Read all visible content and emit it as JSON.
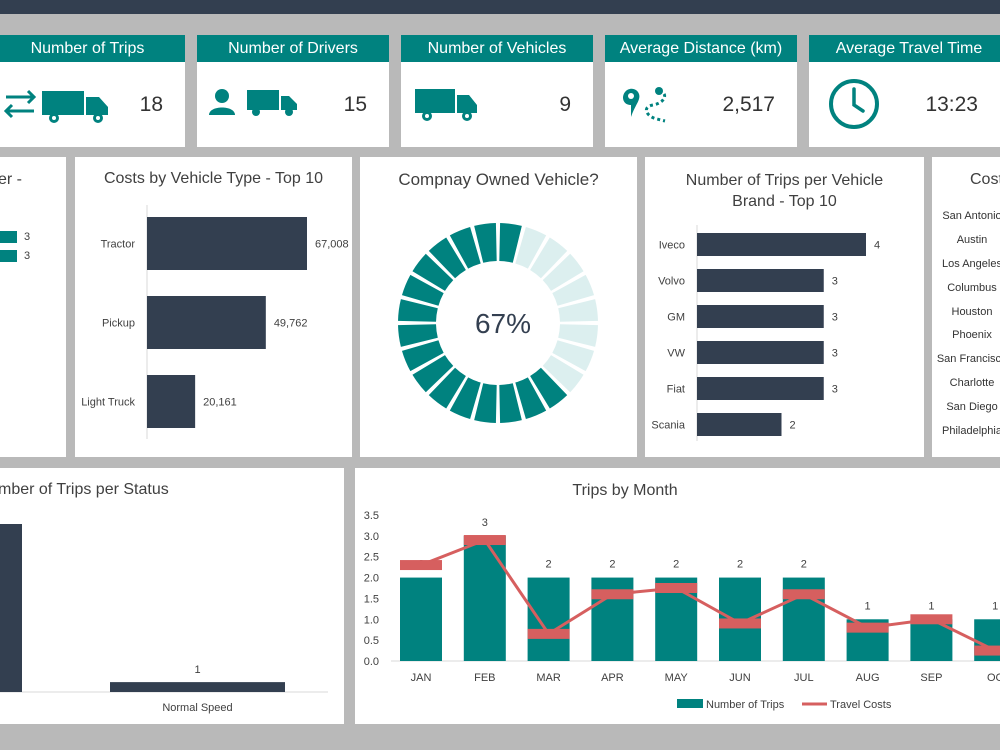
{
  "kpis": [
    {
      "label": "Number of Trips",
      "value": "18"
    },
    {
      "label": "Number of Drivers",
      "value": "15"
    },
    {
      "label": "Number of Vehicles",
      "value": "9"
    },
    {
      "label": "Average Distance (km)",
      "value": "2,517"
    },
    {
      "label": "Average Travel Time",
      "value": "13:23"
    }
  ],
  "driver_panel": {
    "title_fragment": "ver -",
    "values": [
      "3",
      "3"
    ]
  },
  "cities_panel": {
    "title_fragment": "Cost",
    "cities": [
      "San Antonio",
      "Austin",
      "Los Angeles",
      "Columbus",
      "Houston",
      "Phoenix",
      "San Francisco",
      "Charlotte",
      "San Diego",
      "Philadelphia"
    ]
  },
  "colors": {
    "teal": "#00827f",
    "navy": "#333f50",
    "light_teal": "#dcefef",
    "red": "#d65f5f"
  },
  "chart_data": [
    {
      "id": "costs_by_vehicle_type",
      "type": "bar",
      "orientation": "horizontal",
      "title": "Costs by Vehicle Type - Top 10",
      "categories": [
        "Tractor",
        "Pickup",
        "Light Truck"
      ],
      "values": [
        67008,
        49762,
        20161
      ],
      "labels": [
        "67,008",
        "49,762",
        "20,161"
      ],
      "xlim": [
        0,
        67008
      ]
    },
    {
      "id": "company_owned_vehicle",
      "type": "pie",
      "title": "Compnay Owned Vehicle?",
      "percent": 67,
      "label": "67%",
      "segments": 24
    },
    {
      "id": "trips_per_brand",
      "type": "bar",
      "orientation": "horizontal",
      "title": "Number of Trips per Vehicle Brand - Top 10",
      "title_lines": [
        "Number of Trips per Vehicle",
        "Brand - Top 10"
      ],
      "categories": [
        "Iveco",
        "Volvo",
        "GM",
        "VW",
        "Fiat",
        "Scania"
      ],
      "values": [
        4,
        3,
        3,
        3,
        3,
        2
      ],
      "xlim": [
        0,
        4
      ]
    },
    {
      "id": "trips_per_status",
      "type": "bar",
      "title_fragment": "mber of Trips per Status",
      "categories": [
        "",
        "Normal Speed"
      ],
      "values": [
        17,
        1
      ],
      "labels": [
        "",
        "1"
      ],
      "ylim": [
        0,
        17
      ]
    },
    {
      "id": "trips_by_month",
      "type": "bar",
      "title": "Trips by Month",
      "categories": [
        "JAN",
        "FEB",
        "MAR",
        "APR",
        "MAY",
        "JUN",
        "JUL",
        "AUG",
        "SEP",
        "OC"
      ],
      "series": [
        {
          "name": "Number of Trips",
          "type": "bar",
          "values": [
            2,
            3,
            2,
            2,
            2,
            2,
            2,
            1,
            1,
            1
          ]
        },
        {
          "name": "Travel Costs",
          "type": "line",
          "values": [
            2.3,
            2.9,
            0.65,
            1.6,
            1.75,
            0.9,
            1.6,
            0.8,
            1.0,
            0.25
          ]
        }
      ],
      "yticks": [
        "0.0",
        "0.5",
        "1.0",
        "1.5",
        "2.0",
        "2.5",
        "3.0",
        "3.5"
      ],
      "ylim": [
        0,
        3.5
      ]
    }
  ]
}
